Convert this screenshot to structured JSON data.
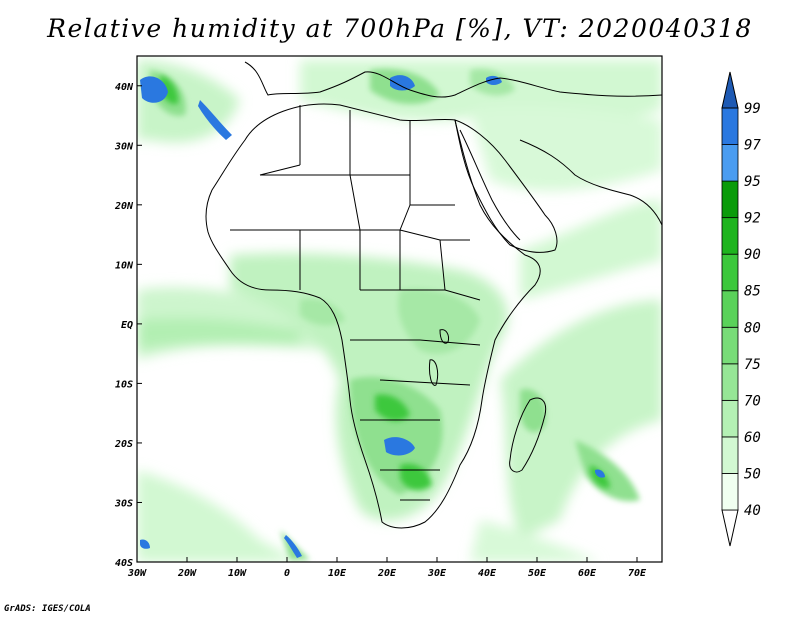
{
  "title": "Relative humidity at 700hPa [%], VT: 2020040318",
  "credit": "GrADS: IGES/COLA",
  "map": {
    "lon_range": [
      -30,
      75
    ],
    "lat_range": [
      -40,
      45
    ],
    "x_ticks": [
      {
        "lon": -30,
        "label": "30W"
      },
      {
        "lon": -20,
        "label": "20W"
      },
      {
        "lon": -10,
        "label": "10W"
      },
      {
        "lon": 0,
        "label": "0"
      },
      {
        "lon": 10,
        "label": "10E"
      },
      {
        "lon": 20,
        "label": "20E"
      },
      {
        "lon": 30,
        "label": "30E"
      },
      {
        "lon": 40,
        "label": "40E"
      },
      {
        "lon": 50,
        "label": "50E"
      },
      {
        "lon": 60,
        "label": "60E"
      },
      {
        "lon": 70,
        "label": "70E"
      }
    ],
    "y_ticks": [
      {
        "lat": 40,
        "label": "40N"
      },
      {
        "lat": 30,
        "label": "30N"
      },
      {
        "lat": 20,
        "label": "20N"
      },
      {
        "lat": 10,
        "label": "10N"
      },
      {
        "lat": 0,
        "label": "EQ"
      },
      {
        "lat": -10,
        "label": "10S"
      },
      {
        "lat": -20,
        "label": "20S"
      },
      {
        "lat": -30,
        "label": "30S"
      },
      {
        "lat": -40,
        "label": "40S"
      }
    ]
  },
  "colorbar": {
    "levels": [
      {
        "value": "40",
        "color": "#f0fff0"
      },
      {
        "value": "50",
        "color": "#d2f8d2"
      },
      {
        "value": "60",
        "color": "#b4f0b4"
      },
      {
        "value": "70",
        "color": "#96e696"
      },
      {
        "value": "75",
        "color": "#78dc78"
      },
      {
        "value": "80",
        "color": "#5ad25a"
      },
      {
        "value": "85",
        "color": "#3cc83c"
      },
      {
        "value": "90",
        "color": "#1eb41e"
      },
      {
        "value": "92",
        "color": "#0a9b0a"
      },
      {
        "value": "95",
        "color": "#4a9cf0"
      },
      {
        "value": "97",
        "color": "#2a78e0"
      },
      {
        "value": "99",
        "color": "#1e5ab4"
      }
    ],
    "top_arrow_color": "#1e5ab4",
    "bottom_arrow_color": "#ffffff"
  },
  "colors": {
    "light_green": "#cdf5cd",
    "mid_green": "#8fe08f",
    "dark_green": "#3cc83c",
    "blue": "#2a78e0",
    "coast": "#000000"
  }
}
